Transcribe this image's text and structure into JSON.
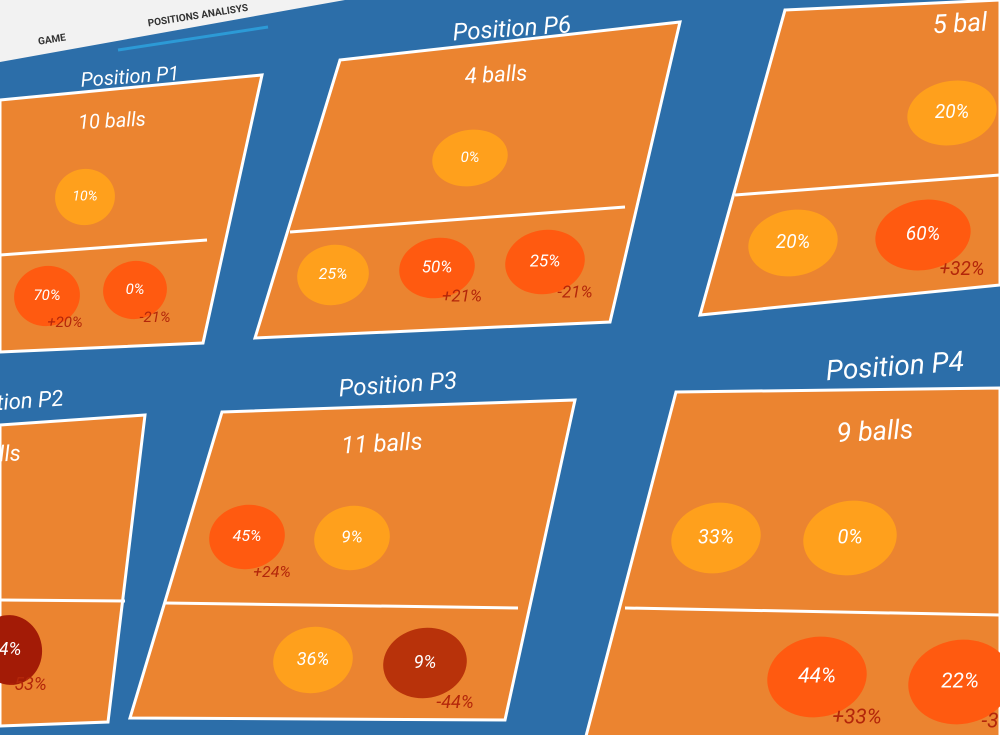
{
  "tabs": [
    "GAME",
    "POSITIONS ANALISYS"
  ],
  "positions": [
    {
      "title": "Position P1",
      "balls": "10 balls",
      "zones": [
        {
          "percent": "10%",
          "color": "#ffa01c"
        },
        {
          "percent": "70%",
          "delta": "+20%",
          "color": "#ff5a10"
        },
        {
          "percent": "0%",
          "delta": "-21%",
          "color": "#ff5a10"
        }
      ]
    },
    {
      "title": "Position P6",
      "balls": "4 balls",
      "zones": [
        {
          "percent": "0%",
          "color": "#ffa01c"
        },
        {
          "percent": "25%",
          "color": "#ffa01c"
        },
        {
          "percent": "50%",
          "delta": "+21%",
          "color": "#ff5a10"
        },
        {
          "percent": "25%",
          "delta": "-21%",
          "color": "#ff5a10"
        }
      ]
    },
    {
      "balls": "5 bal",
      "zones": [
        {
          "percent": "20%",
          "color": "#ffa01c"
        },
        {
          "percent": "20%",
          "color": "#ffa01c"
        },
        {
          "percent": "60%",
          "delta": "+32%",
          "color": "#ff5a10"
        }
      ]
    },
    {
      "title": "tion P2",
      "balls": "lls",
      "zones": [
        {
          "percent": "4%",
          "delta": "-53%",
          "color": "#a31b06"
        }
      ]
    },
    {
      "title": "Position P3",
      "balls": "11 balls",
      "zones": [
        {
          "percent": "45%",
          "delta": "+24%",
          "color": "#ff5a10"
        },
        {
          "percent": "9%",
          "color": "#ffa01c"
        },
        {
          "percent": "36%",
          "color": "#ffa01c"
        },
        {
          "percent": "9%",
          "delta": "-44%",
          "color": "#b8320a"
        }
      ]
    },
    {
      "title": "Position P4",
      "balls": "9 balls",
      "zones": [
        {
          "percent": "33%",
          "color": "#ffa01c"
        },
        {
          "percent": "0%",
          "color": "#ffa01c"
        },
        {
          "percent": "44%",
          "delta": "+33%",
          "color": "#ff5a10"
        },
        {
          "percent": "22%",
          "delta": "-3",
          "color": "#ff5a10"
        }
      ]
    }
  ]
}
